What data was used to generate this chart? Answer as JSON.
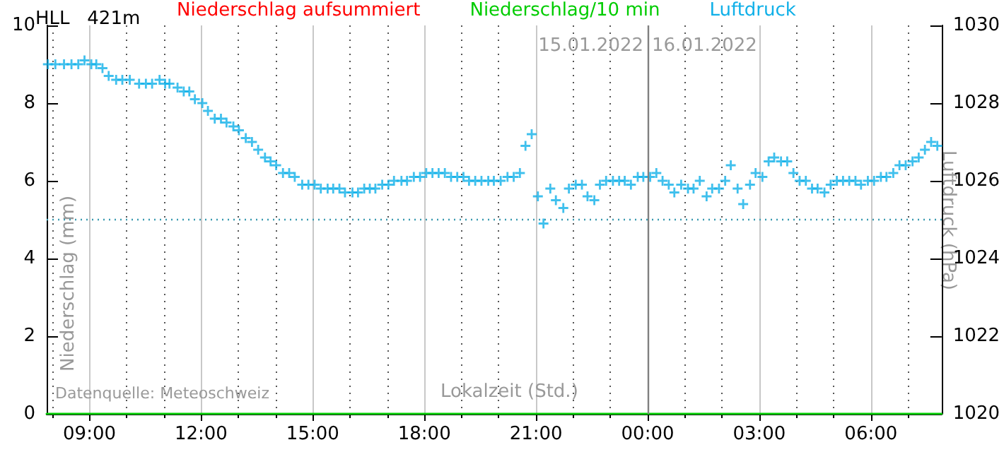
{
  "chart_data": {
    "type": "scatter",
    "title": "HLL   421m",
    "xlabel": "Lokalzeit (Std.)",
    "ylabel": "Niederschlag (mm)",
    "y2label": "Luftdruck (hPa)",
    "xlim": [
      "2022-01-15T07:51",
      "2022-01-16T07:54"
    ],
    "xticks": [
      {
        "value": "2022-01-15T08:00",
        "label": null
      },
      {
        "value": "2022-01-15T09:00",
        "label": "09:00"
      },
      {
        "value": "2022-01-15T10:00",
        "label": null
      },
      {
        "value": "2022-01-15T11:00",
        "label": null
      },
      {
        "value": "2022-01-15T12:00",
        "label": "12:00"
      },
      {
        "value": "2022-01-15T13:00",
        "label": null
      },
      {
        "value": "2022-01-15T14:00",
        "label": null
      },
      {
        "value": "2022-01-15T15:00",
        "label": "15:00"
      },
      {
        "value": "2022-01-15T16:00",
        "label": null
      },
      {
        "value": "2022-01-15T17:00",
        "label": null
      },
      {
        "value": "2022-01-15T18:00",
        "label": "18:00"
      },
      {
        "value": "2022-01-15T19:00",
        "label": null
      },
      {
        "value": "2022-01-15T20:00",
        "label": null
      },
      {
        "value": "2022-01-15T21:00",
        "label": "21:00"
      },
      {
        "value": "2022-01-15T22:00",
        "label": null
      },
      {
        "value": "2022-01-15T23:00",
        "label": null
      },
      {
        "value": "2022-01-16T00:00",
        "label": "00:00"
      },
      {
        "value": "2022-01-16T01:00",
        "label": null
      },
      {
        "value": "2022-01-16T02:00",
        "label": null
      },
      {
        "value": "2022-01-16T03:00",
        "label": "03:00"
      },
      {
        "value": "2022-01-16T04:00",
        "label": null
      },
      {
        "value": "2022-01-16T05:00",
        "label": null
      },
      {
        "value": "2022-01-16T06:00",
        "label": "06:00"
      },
      {
        "value": "2022-01-16T07:00",
        "label": null
      }
    ],
    "ylim": [
      0,
      10
    ],
    "yticks": [
      0,
      2,
      4,
      6,
      8,
      10
    ],
    "y2lim": [
      1020,
      1030
    ],
    "y2ticks": [
      1020,
      1022,
      1024,
      1026,
      1028,
      1030
    ],
    "grid": "x",
    "legend": "top",
    "ref_lines": [
      {
        "axis": "x",
        "value": "2022-01-16T00:00",
        "color": "#808080",
        "line_style": "solid"
      },
      {
        "axis": "y",
        "value": 5,
        "color": "#3a9ab0",
        "line_style": "dotted"
      }
    ],
    "annotations": [
      "15.01.2022",
      "16.01.2022",
      "Datenquelle: Meteoschweiz"
    ],
    "series": [
      {
        "name": "Niederschlag aufsummiert",
        "type": "line",
        "color": "#ff0000"
      },
      {
        "name": "Niederschlag/10 min",
        "type": "line",
        "color": "#00cc00",
        "x": [
          "2022-01-15T07:51",
          "2022-01-16T07:54"
        ],
        "values": [
          0,
          0
        ]
      },
      {
        "name": "Luftdruck",
        "axis": "y2",
        "color": "#10b0e8",
        "marker": "cross",
        "x": [
          "2022-01-15T07:53",
          "2022-01-15T08:05",
          "2022-01-15T08:19",
          "2022-01-15T08:31",
          "2022-01-15T08:42",
          "2022-01-15T08:52",
          "2022-01-15T09:03",
          "2022-01-15T09:11",
          "2022-01-15T09:21",
          "2022-01-15T09:31",
          "2022-01-15T09:43",
          "2022-01-15T09:53",
          "2022-01-15T10:05",
          "2022-01-15T10:20",
          "2022-01-15T10:31",
          "2022-01-15T10:41",
          "2022-01-15T10:53",
          "2022-01-15T11:02",
          "2022-01-15T11:09",
          "2022-01-15T11:22",
          "2022-01-15T11:32",
          "2022-01-15T11:41",
          "2022-01-15T11:50",
          "2022-01-15T12:02",
          "2022-01-15T12:11",
          "2022-01-15T12:22",
          "2022-01-15T12:32",
          "2022-01-15T12:41",
          "2022-01-15T12:52",
          "2022-01-15T13:01",
          "2022-01-15T13:12",
          "2022-01-15T13:22",
          "2022-01-15T13:32",
          "2022-01-15T13:43",
          "2022-01-15T13:52",
          "2022-01-15T14:01",
          "2022-01-15T14:12",
          "2022-01-15T14:22",
          "2022-01-15T14:31",
          "2022-01-15T14:43",
          "2022-01-15T14:53",
          "2022-01-15T15:03",
          "2022-01-15T15:13",
          "2022-01-15T15:24",
          "2022-01-15T15:33",
          "2022-01-15T15:43",
          "2022-01-15T15:52",
          "2022-01-15T16:04",
          "2022-01-15T16:13",
          "2022-01-15T16:23",
          "2022-01-15T16:32",
          "2022-01-15T16:41",
          "2022-01-15T16:52",
          "2022-01-15T17:02",
          "2022-01-15T17:11",
          "2022-01-15T17:23",
          "2022-01-15T17:32",
          "2022-01-15T17:43",
          "2022-01-15T17:53",
          "2022-01-15T18:03",
          "2022-01-15T18:13",
          "2022-01-15T18:23",
          "2022-01-15T18:33",
          "2022-01-15T18:43",
          "2022-01-15T18:53",
          "2022-01-15T19:03",
          "2022-01-15T19:12",
          "2022-01-15T19:22",
          "2022-01-15T19:32",
          "2022-01-15T19:43",
          "2022-01-15T19:52",
          "2022-01-15T20:03",
          "2022-01-15T20:14",
          "2022-01-15T20:24",
          "2022-01-15T20:34",
          "2022-01-15T20:43",
          "2022-01-15T20:53",
          "2022-01-15T21:03",
          "2022-01-15T21:12",
          "2022-01-15T21:23",
          "2022-01-15T21:32",
          "2022-01-15T21:44",
          "2022-01-15T21:53",
          "2022-01-15T22:04",
          "2022-01-15T22:14",
          "2022-01-15T22:23",
          "2022-01-15T22:34",
          "2022-01-15T22:43",
          "2022-01-15T22:53",
          "2022-01-15T23:04",
          "2022-01-15T23:14",
          "2022-01-15T23:23",
          "2022-01-15T23:33",
          "2022-01-15T23:44",
          "2022-01-15T23:53",
          "2022-01-16T00:04",
          "2022-01-16T00:14",
          "2022-01-16T00:24",
          "2022-01-16T00:34",
          "2022-01-16T00:43",
          "2022-01-16T00:54",
          "2022-01-16T01:05",
          "2022-01-16T01:14",
          "2022-01-16T01:24",
          "2022-01-16T01:35",
          "2022-01-16T01:44",
          "2022-01-16T01:55",
          "2022-01-16T02:05",
          "2022-01-16T02:14",
          "2022-01-16T02:25",
          "2022-01-16T02:34",
          "2022-01-16T02:45",
          "2022-01-16T02:54",
          "2022-01-16T03:05",
          "2022-01-16T03:15",
          "2022-01-16T03:24",
          "2022-01-16T03:35",
          "2022-01-16T03:45",
          "2022-01-16T03:55",
          "2022-01-16T04:05",
          "2022-01-16T04:15",
          "2022-01-16T04:25",
          "2022-01-16T04:34",
          "2022-01-16T04:45",
          "2022-01-16T04:55",
          "2022-01-16T05:05",
          "2022-01-16T05:15",
          "2022-01-16T05:25",
          "2022-01-16T05:35",
          "2022-01-16T05:44",
          "2022-01-16T05:55",
          "2022-01-16T06:05",
          "2022-01-16T06:16",
          "2022-01-16T06:25",
          "2022-01-16T06:36",
          "2022-01-16T06:46",
          "2022-01-16T06:56",
          "2022-01-16T07:07",
          "2022-01-16T07:17",
          "2022-01-16T07:27",
          "2022-01-16T07:37",
          "2022-01-16T07:47"
        ],
        "values": [
          1029.0,
          1029.0,
          1029.0,
          1029.0,
          1029.0,
          1029.1,
          1029.0,
          1029.0,
          1028.9,
          1028.7,
          1028.6,
          1028.6,
          1028.6,
          1028.5,
          1028.5,
          1028.5,
          1028.6,
          1028.5,
          1028.5,
          1028.4,
          1028.3,
          1028.3,
          1028.1,
          1028.0,
          1027.8,
          1027.6,
          1027.6,
          1027.5,
          1027.4,
          1027.3,
          1027.1,
          1027.0,
          1026.8,
          1026.6,
          1026.5,
          1026.4,
          1026.2,
          1026.2,
          1026.1,
          1025.9,
          1025.9,
          1025.9,
          1025.8,
          1025.8,
          1025.8,
          1025.8,
          1025.7,
          1025.7,
          1025.7,
          1025.8,
          1025.8,
          1025.8,
          1025.9,
          1025.9,
          1026.0,
          1026.0,
          1026.0,
          1026.1,
          1026.1,
          1026.2,
          1026.2,
          1026.2,
          1026.2,
          1026.1,
          1026.1,
          1026.1,
          1026.0,
          1026.0,
          1026.0,
          1026.0,
          1026.0,
          1026.0,
          1026.1,
          1026.1,
          1026.2,
          1026.9,
          1027.2,
          1025.6,
          1024.9,
          1025.8,
          1025.5,
          1025.3,
          1025.8,
          1025.9,
          1025.9,
          1025.6,
          1025.5,
          1025.9,
          1026.0,
          1026.0,
          1026.0,
          1026.0,
          1025.9,
          1026.1,
          1026.1,
          1026.1,
          1026.2,
          1026.0,
          1025.9,
          1025.7,
          1025.9,
          1025.8,
          1025.8,
          1026.0,
          1025.6,
          1025.8,
          1025.8,
          1026.0,
          1026.4,
          1025.8,
          1025.4,
          1025.9,
          1026.2,
          1026.1,
          1026.5,
          1026.6,
          1026.5,
          1026.5,
          1026.2,
          1026.0,
          1026.0,
          1025.8,
          1025.8,
          1025.7,
          1025.9,
          1026.0,
          1026.0,
          1026.0,
          1026.0,
          1025.9,
          1026.0,
          1026.0,
          1026.1,
          1026.1,
          1026.2,
          1026.4,
          1026.4,
          1026.5,
          1026.6,
          1026.8,
          1027.0,
          1026.9
        ]
      }
    ]
  }
}
